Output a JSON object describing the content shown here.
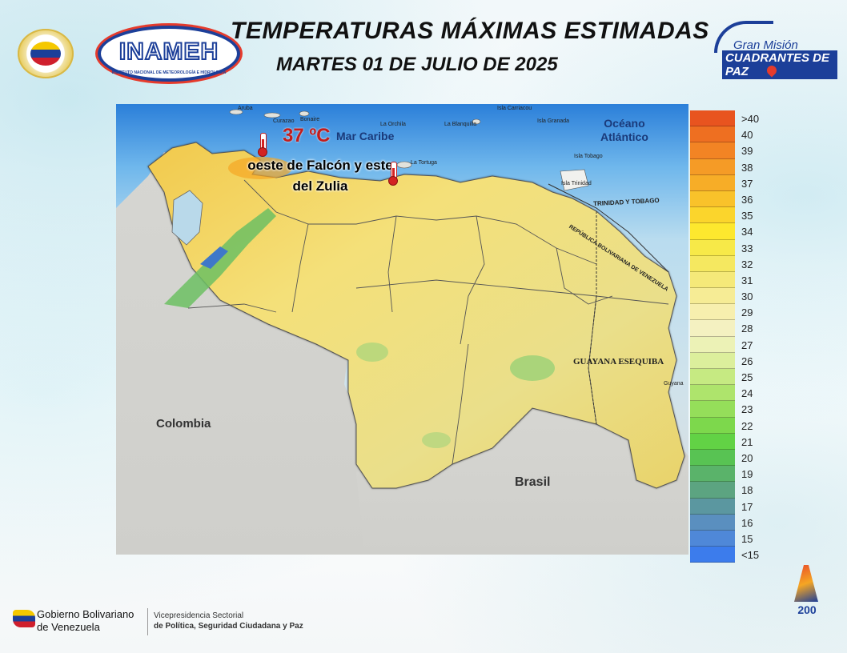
{
  "header": {
    "title": "TEMPERATURAS MÁXIMAS ESTIMADAS",
    "subtitle": "MARTES 01 DE JULIO DE 2025"
  },
  "logos": {
    "inameh_word": "INAMEH",
    "inameh_tagline": "INSTITUTO NACIONAL DE METEOROLOGÍA E HIDROLOGÍA",
    "gmcp_line1": "Gran Misión",
    "gmcp_line2": "CUADRANTES DE PAZ"
  },
  "map": {
    "ocean_label": "Océano\nAtlántico",
    "sea_label": "Mar Caribe",
    "colombia_label": "Colombia",
    "brasil_label": "Brasil",
    "guayana_label": "GUAYANA ESEQUIBA",
    "trinidad_label": "TRINIDAD Y TOBAGO",
    "border_label": "REPÚBLICA BOLIVARIANA DE VENEZUELA",
    "islands": [
      "Aruba",
      "Curazao",
      "Bonaire",
      "La Orchila",
      "La Blanquilla",
      "La Tortuga",
      "Isla Carriacou",
      "Isla Granada",
      "Isla Tobago",
      "Isla Trinidad",
      "Guyana"
    ],
    "max_temp": "37 ºC",
    "region": "oeste de Falcón y este del Zulia"
  },
  "legend": {
    "entries": [
      {
        "label": ">40",
        "color": "#e8541f"
      },
      {
        "label": "40",
        "color": "#ee6f21"
      },
      {
        "label": "39",
        "color": "#f28424"
      },
      {
        "label": "38",
        "color": "#f59b26"
      },
      {
        "label": "37",
        "color": "#f7ad27"
      },
      {
        "label": "36",
        "color": "#f9c22a"
      },
      {
        "label": "35",
        "color": "#fbd52c"
      },
      {
        "label": "34",
        "color": "#fde82e"
      },
      {
        "label": "33",
        "color": "#f7e948"
      },
      {
        "label": "32",
        "color": "#f5e860"
      },
      {
        "label": "31",
        "color": "#f5e979"
      },
      {
        "label": "30",
        "color": "#f6ec95"
      },
      {
        "label": "29",
        "color": "#f7efae"
      },
      {
        "label": "28",
        "color": "#f4f1c1"
      },
      {
        "label": "27",
        "color": "#ecf2b6"
      },
      {
        "label": "26",
        "color": "#dcef9c"
      },
      {
        "label": "25",
        "color": "#c6ea82"
      },
      {
        "label": "24",
        "color": "#aee46c"
      },
      {
        "label": "23",
        "color": "#95de5a"
      },
      {
        "label": "22",
        "color": "#7dd84c"
      },
      {
        "label": "21",
        "color": "#62d245"
      },
      {
        "label": "20",
        "color": "#58c353"
      },
      {
        "label": "19",
        "color": "#5ab36a"
      },
      {
        "label": "18",
        "color": "#5ca481"
      },
      {
        "label": "17",
        "color": "#5b97a0"
      },
      {
        "label": "16",
        "color": "#5a8fbf"
      },
      {
        "label": "15",
        "color": "#4f88d8"
      },
      {
        "label": "<15",
        "color": "#3c7cec"
      }
    ]
  },
  "footer": {
    "gov_line1": "Gobierno Bolivariano",
    "gov_line2": "de Venezuela",
    "vice_line1": "Vicepresidencia Sectorial",
    "vice_line2": "de Política, Seguridad Ciudadana y Paz",
    "bicentenary": "200"
  }
}
